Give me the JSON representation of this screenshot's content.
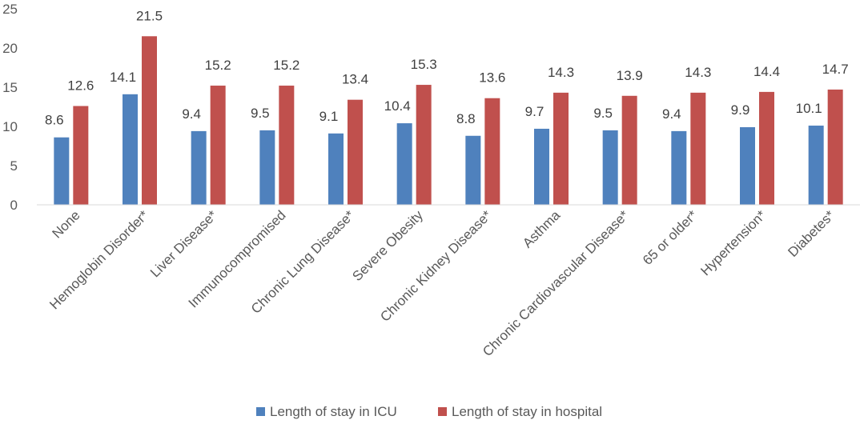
{
  "chart_data": {
    "type": "bar",
    "title": "",
    "xlabel": "",
    "ylabel": "",
    "ylim": [
      0,
      25
    ],
    "yticks": [
      0,
      5,
      10,
      15,
      20,
      25
    ],
    "grid": false,
    "legend_position": "bottom",
    "categories": [
      "None",
      "Hemoglobin Disorder*",
      "Liver Disease*",
      "Immunocompromised",
      "Chronic Lung Disease*",
      "Severe Obesity",
      "Chronic Kidney Disease*",
      "Asthma",
      "Chronic Cardiovascular Disease*",
      "65 or older*",
      "Hypertension*",
      "Diabetes*"
    ],
    "series": [
      {
        "name": "Length of stay in ICU",
        "color": "#4F81BD",
        "values": [
          8.6,
          14.1,
          9.4,
          9.5,
          9.1,
          10.4,
          8.8,
          9.7,
          9.5,
          9.4,
          9.9,
          10.1
        ],
        "labels": [
          "8.6",
          "14.1",
          "9.4",
          "9.5",
          "9.1",
          "10.4",
          "8.8",
          "9.7",
          "9.5",
          "9.4",
          "9.9",
          "10.1"
        ]
      },
      {
        "name": "Length of stay in hospital",
        "color": "#C0504D",
        "values": [
          12.6,
          21.5,
          15.2,
          15.2,
          13.4,
          15.3,
          13.6,
          14.3,
          13.9,
          14.3,
          14.4,
          14.7
        ],
        "labels": [
          "12.6",
          "21.5",
          "15.2",
          "15.2",
          "13.4",
          "15.3",
          "13.6",
          "14.3",
          "13.9",
          "14.3",
          "14.4",
          "14.7"
        ]
      }
    ]
  }
}
